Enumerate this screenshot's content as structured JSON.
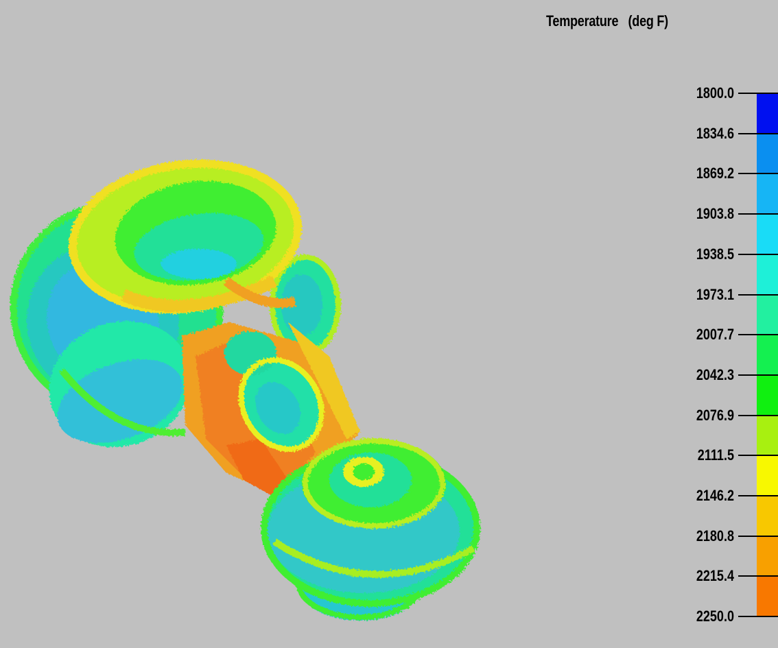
{
  "legend": {
    "title": "Temperature   (deg F)",
    "labels": [
      "1800.0",
      "1834.6",
      "1869.2",
      "1903.8",
      "1938.5",
      "1973.1",
      "2007.7",
      "2042.3",
      "2076.9",
      "2111.5",
      "2146.2",
      "2180.8",
      "2215.4",
      "2250.0"
    ],
    "colors": [
      "#0010f0",
      "#0a8ff0",
      "#16b5f5",
      "#19dcf7",
      "#1ef0d8",
      "#22f0a0",
      "#14f050",
      "#10f010",
      "#a8f010",
      "#f8f800",
      "#f8c800",
      "#f8a000",
      "#f87800",
      "#f80000"
    ]
  },
  "model": {
    "name": "forging-part-temperature-plot",
    "colors": {
      "hot_red_orange": "#f06a14",
      "orange": "#f0a020",
      "yellow_orange": "#f0c820",
      "yellow": "#e8f020",
      "yellow_green": "#b8ee20",
      "green": "#38ee30",
      "spring_green": "#20ee80",
      "aqua_green": "#20e8b0",
      "cyan": "#20d8d8",
      "light_blue": "#30b8e8"
    }
  }
}
